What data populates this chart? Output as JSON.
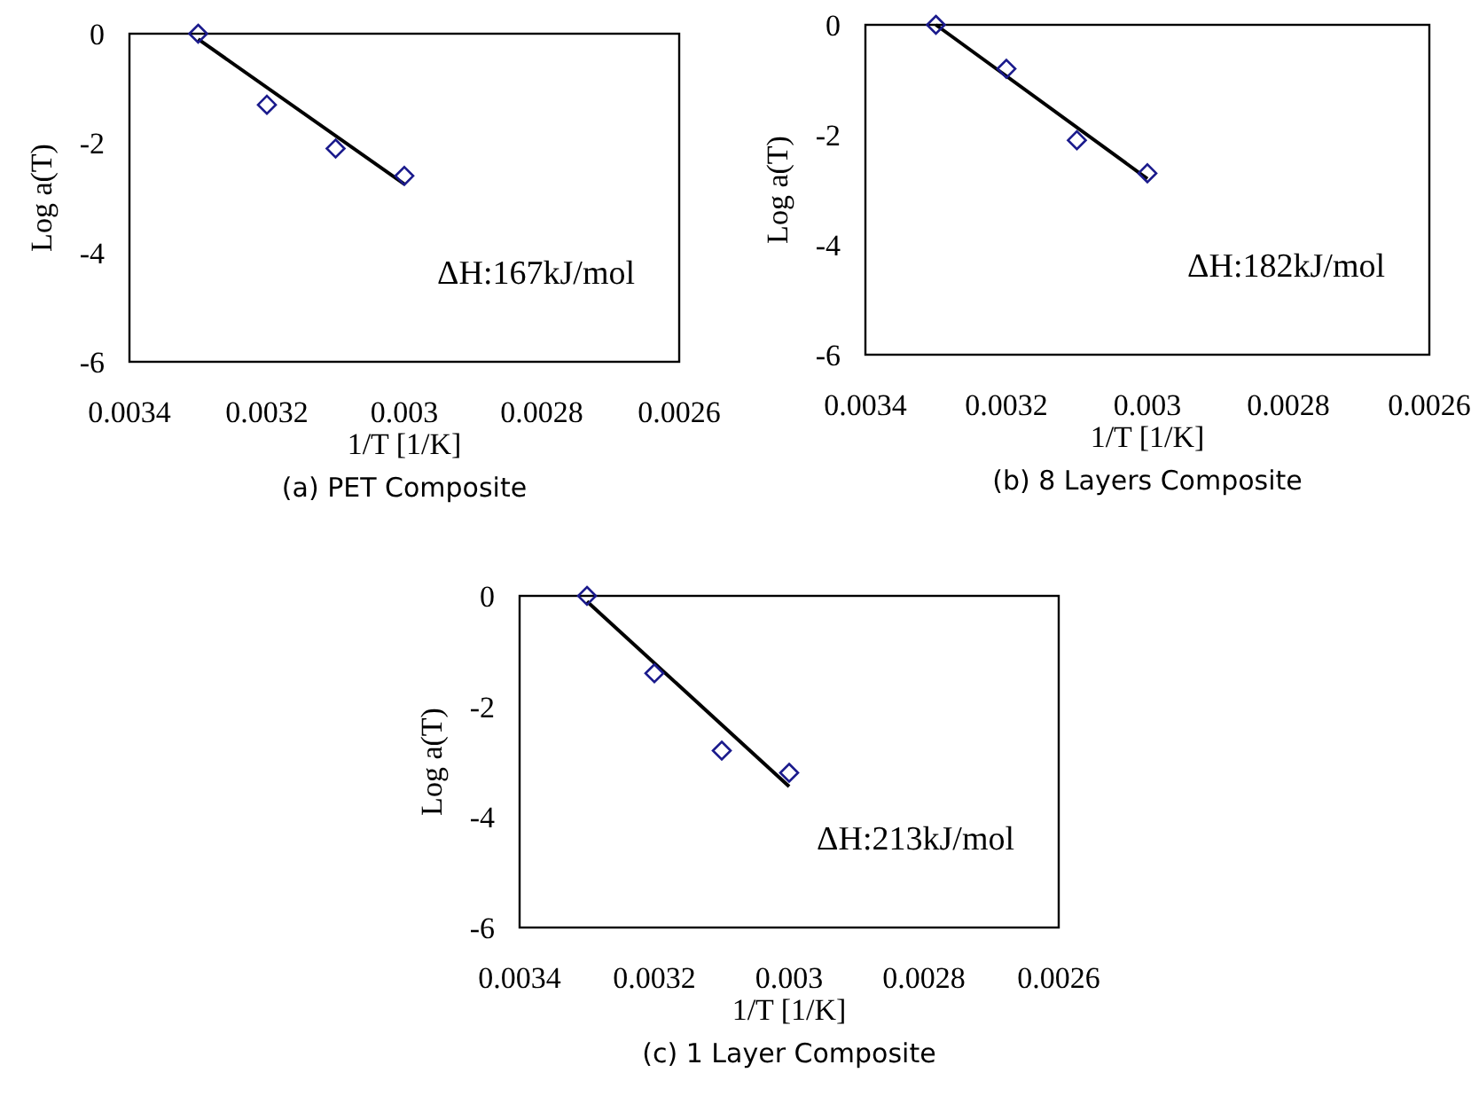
{
  "chart_data": [
    {
      "type": "scatter",
      "title": "(a) PET Composite",
      "xlabel": "1/T [1/K]",
      "ylabel": "Log a(T)",
      "xlim": [
        0.0034,
        0.0026
      ],
      "xticks": [
        0.0034,
        0.0032,
        0.003,
        0.0028,
        0.0026
      ],
      "ylim": [
        -6,
        0
      ],
      "yticks": [
        0,
        -2,
        -4,
        -6
      ],
      "marker": "diamond",
      "annotations": [
        "ΔH:167kJ/mol"
      ],
      "series": [
        {
          "color": "#1a1a8c",
          "x": [
            0.0033,
            0.0032,
            0.0031,
            0.003
          ],
          "values": [
            0,
            -1.3,
            -2.1,
            -2.6
          ]
        },
        {
          "type": "line",
          "color": "#000000",
          "x": [
            0.0033,
            0.003
          ],
          "values": [
            -0.1,
            -2.75
          ],
          "marker": "none",
          "line_style": "solid"
        }
      ]
    },
    {
      "type": "scatter",
      "title": "(b) 8 Layers Composite",
      "xlabel": "1/T [1/K]",
      "ylabel": "Log a(T)",
      "xlim": [
        0.0034,
        0.0026
      ],
      "xticks": [
        0.0034,
        0.0032,
        0.003,
        0.0028,
        0.0026
      ],
      "ylim": [
        -6,
        0
      ],
      "yticks": [
        0,
        -2,
        -4,
        -6
      ],
      "marker": "diamond",
      "annotations": [
        "ΔH:182kJ/mol"
      ],
      "series": [
        {
          "color": "#1a1a8c",
          "x": [
            0.0033,
            0.0032,
            0.0031,
            0.003
          ],
          "values": [
            0,
            -0.8,
            -2.1,
            -2.7
          ]
        },
        {
          "type": "line",
          "color": "#000000",
          "x": [
            0.0033,
            0.003
          ],
          "values": [
            0,
            -2.8
          ],
          "marker": "none",
          "line_style": "solid"
        }
      ]
    },
    {
      "type": "scatter",
      "title": "(c) 1 Layer Composite",
      "xlabel": "1/T [1/K]",
      "ylabel": "Log a(T)",
      "xlim": [
        0.0034,
        0.0026
      ],
      "xticks": [
        0.0034,
        0.0032,
        0.003,
        0.0028,
        0.0026
      ],
      "ylim": [
        -6,
        0
      ],
      "yticks": [
        0,
        -2,
        -4,
        -6
      ],
      "marker": "diamond",
      "annotations": [
        "ΔH:213kJ/mol"
      ],
      "series": [
        {
          "color": "#1a1a8c",
          "x": [
            0.0033,
            0.0032,
            0.0031,
            0.003
          ],
          "values": [
            0,
            -1.4,
            -2.8,
            -3.2
          ]
        },
        {
          "type": "line",
          "color": "#000000",
          "x": [
            0.0033,
            0.003
          ],
          "values": [
            -0.1,
            -3.45
          ],
          "marker": "none",
          "line_style": "solid"
        }
      ]
    }
  ]
}
